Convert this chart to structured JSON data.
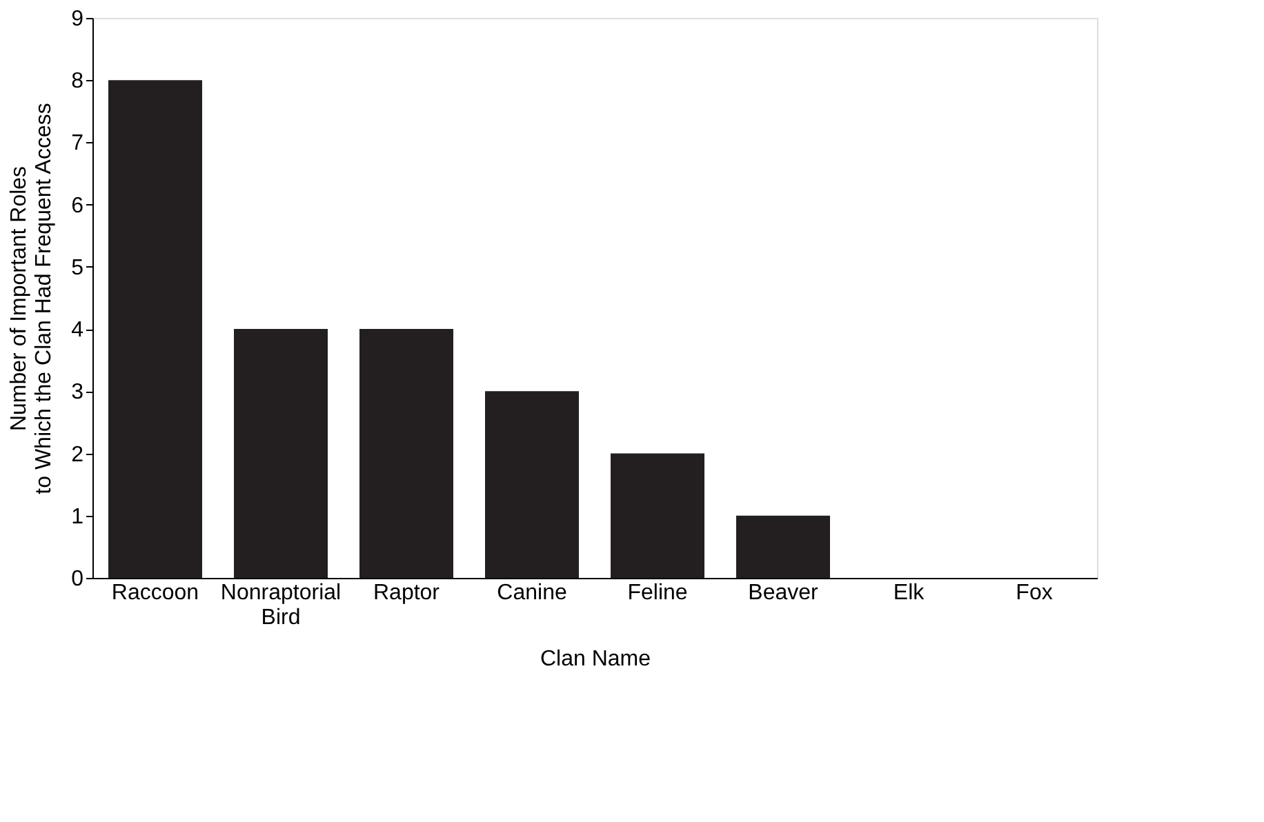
{
  "chart_data": {
    "type": "bar",
    "xlabel": "Clan Name",
    "ylabel": "Number of Important Roles\nto Which the Clan Had Frequent Access",
    "categories": [
      "Raccoon",
      "Nonraptorial Bird",
      "Raptor",
      "Canine",
      "Feline",
      "Beaver",
      "Elk",
      "Fox"
    ],
    "values": [
      8,
      4,
      4,
      3,
      2,
      1,
      0,
      0
    ],
    "color": "#231f20",
    "ylim": [
      0,
      9
    ],
    "yticks": [
      0,
      1,
      2,
      3,
      4,
      5,
      6,
      7,
      8,
      9
    ],
    "grid": false
  }
}
